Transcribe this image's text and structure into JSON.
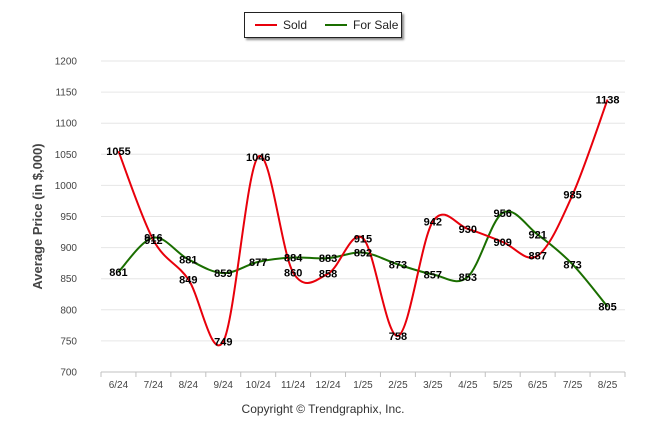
{
  "chart_data": {
    "type": "line",
    "categories": [
      "6/24",
      "7/24",
      "8/24",
      "9/24",
      "10/24",
      "11/24",
      "12/24",
      "1/25",
      "2/25",
      "3/25",
      "4/25",
      "5/25",
      "6/25",
      "7/25",
      "8/25"
    ],
    "series": [
      {
        "name": "Sold",
        "color": "#e8000b",
        "values": [
          1055,
          912,
          849,
          749,
          1046,
          860,
          858,
          915,
          758,
          942,
          930,
          909,
          887,
          985,
          1138
        ]
      },
      {
        "name": "For Sale",
        "color": "#1a6e00",
        "values": [
          861,
          916,
          881,
          859,
          877,
          884,
          883,
          892,
          873,
          857,
          853,
          956,
          921,
          873,
          805
        ]
      }
    ],
    "ylabel": "Average Price (in $,000)",
    "xlabel": "",
    "ylim": [
      700,
      1200
    ],
    "yticks": [
      700,
      750,
      800,
      850,
      900,
      950,
      1000,
      1050,
      1100,
      1150,
      1200
    ],
    "grid": true,
    "legend_position": "top-center"
  },
  "legend": {
    "items": [
      {
        "label": "Sold",
        "color": "#e8000b"
      },
      {
        "label": "For Sale",
        "color": "#1a6e00"
      }
    ]
  },
  "footer": {
    "copyright": "Copyright © Trendgraphix, Inc."
  }
}
